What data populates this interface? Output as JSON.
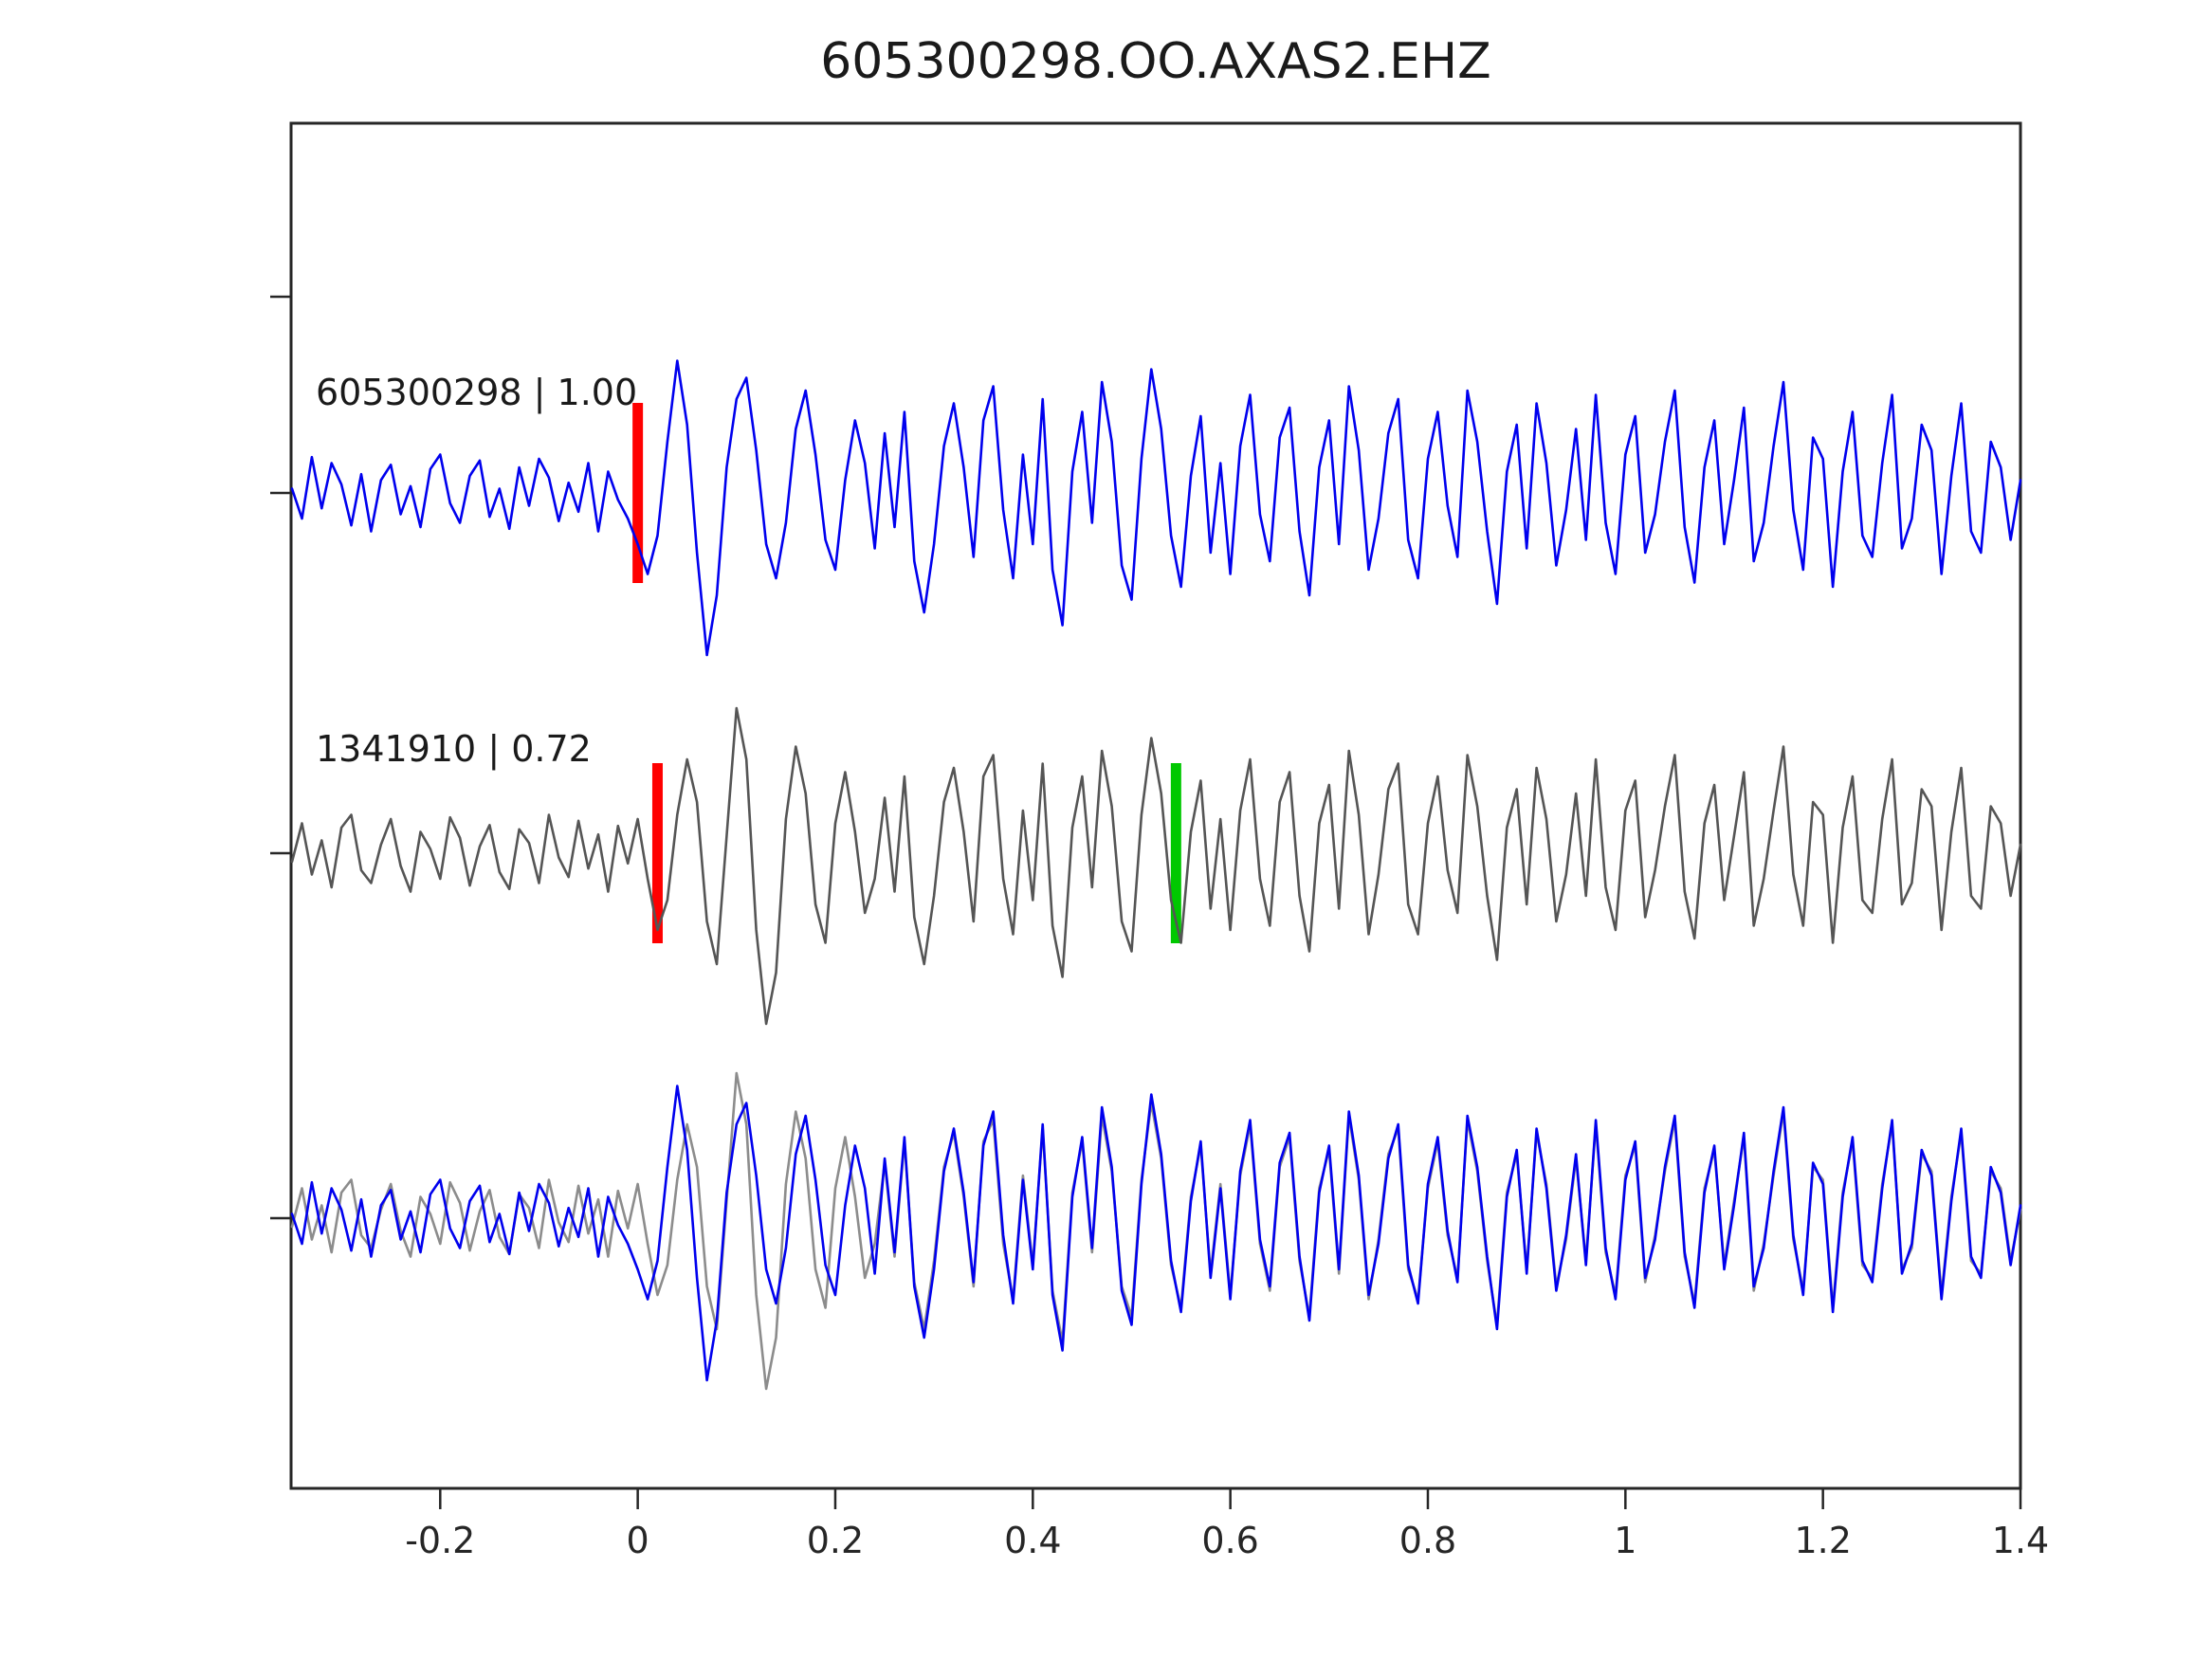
{
  "title": "605300298.OO.AXAS2.EHZ",
  "chart_data": {
    "type": "line",
    "title": "605300298.OO.AXAS2.EHZ",
    "xlabel": "",
    "ylabel": "",
    "xlim": [
      -0.351,
      1.4
    ],
    "grid": false,
    "legend": "none",
    "xticks": {
      "values": [
        -0.2,
        0,
        0.2,
        0.4,
        0.6,
        0.8,
        1,
        1.2,
        1.4
      ],
      "labels": [
        "-0.2",
        "0",
        "0.2",
        "0.4",
        "0.6",
        "0.8",
        "1",
        "1.2",
        "1.4"
      ]
    },
    "x_start": -0.35,
    "dx": 0.01,
    "rows": [
      {
        "name": "template-trace-row",
        "label": "605300298 | 1.00",
        "series": [
          {
            "ref": "template"
          }
        ],
        "picks": [
          {
            "x": 0.0,
            "color": "#ff0000",
            "name": "template-pick-red"
          }
        ]
      },
      {
        "name": "detection-trace-row",
        "label": "1341910 | 0.72",
        "series": [
          {
            "ref": "detection"
          }
        ],
        "picks": [
          {
            "x": 0.02,
            "color": "#ff0000",
            "name": "detection-pick-red"
          },
          {
            "x": 0.545,
            "color": "#00c800",
            "name": "detection-pick-green"
          }
        ]
      },
      {
        "name": "overlay-row",
        "label": "",
        "series": [
          {
            "ref": "detection",
            "color": "#8c8c8c"
          },
          {
            "ref": "template"
          }
        ],
        "picks": []
      }
    ],
    "series": {
      "template": {
        "name": "605300298",
        "color": "#0000ee",
        "values": [
          0.05,
          -0.3,
          0.42,
          -0.18,
          0.35,
          0.1,
          -0.38,
          0.22,
          -0.45,
          0.15,
          0.33,
          -0.25,
          0.08,
          -0.4,
          0.28,
          0.45,
          -0.12,
          -0.35,
          0.2,
          0.38,
          -0.28,
          0.05,
          -0.42,
          0.3,
          -0.15,
          0.4,
          0.18,
          -0.33,
          0.12,
          -0.22,
          0.35,
          -0.45,
          0.25,
          -0.08,
          -0.3,
          -0.6,
          -0.95,
          -0.5,
          0.6,
          1.55,
          0.8,
          -0.7,
          -1.9,
          -1.2,
          0.3,
          1.1,
          1.35,
          0.5,
          -0.6,
          -1.0,
          -0.35,
          0.75,
          1.2,
          0.45,
          -0.55,
          -0.9,
          0.15,
          0.85,
          0.35,
          -0.65,
          0.7,
          -0.4,
          0.95,
          -0.8,
          -1.4,
          -0.6,
          0.55,
          1.05,
          0.3,
          -0.75,
          0.85,
          1.25,
          -0.2,
          -1.0,
          0.45,
          -0.6,
          1.1,
          -0.9,
          -1.55,
          0.25,
          0.95,
          -0.35,
          1.3,
          0.6,
          -0.85,
          -1.25,
          0.4,
          1.45,
          0.75,
          -0.5,
          -1.1,
          0.2,
          0.9,
          -0.7,
          0.35,
          -0.95,
          0.55,
          1.15,
          -0.25,
          -0.8,
          0.65,
          1.0,
          -0.45,
          -1.2,
          0.3,
          0.85,
          -0.6,
          1.25,
          0.5,
          -0.9,
          -0.3,
          0.7,
          1.1,
          -0.55,
          -1.0,
          0.4,
          0.95,
          -0.15,
          -0.75,
          1.2,
          0.6,
          -0.45,
          -1.3,
          0.25,
          0.8,
          -0.65,
          1.05,
          0.35,
          -0.85,
          -0.2,
          0.75,
          -0.55,
          1.15,
          -0.35,
          -0.95,
          0.45,
          0.9,
          -0.7,
          -0.25,
          0.6,
          1.2,
          -0.4,
          -1.05,
          0.3,
          0.85,
          -0.6,
          0.15,
          1.0,
          -0.8,
          -0.35,
          0.55,
          1.3,
          -0.2,
          -0.9,
          0.65,
          0.4,
          -1.1,
          0.25,
          0.95,
          -0.5,
          -0.75,
          0.35,
          1.15,
          -0.65,
          -0.3,
          0.8,
          0.5,
          -0.95,
          0.2,
          1.05,
          -0.45,
          -0.7,
          0.6,
          0.3,
          -0.55,
          0.15
        ]
      },
      "detection": {
        "name": "1341910",
        "color": "#555555",
        "values": [
          -0.1,
          0.35,
          -0.25,
          0.15,
          -0.4,
          0.3,
          0.45,
          -0.2,
          -0.35,
          0.1,
          0.4,
          -0.15,
          -0.45,
          0.25,
          0.05,
          -0.3,
          0.42,
          0.18,
          -0.38,
          0.08,
          0.33,
          -0.22,
          -0.42,
          0.28,
          0.12,
          -0.35,
          0.45,
          -0.05,
          -0.28,
          0.38,
          -0.18,
          0.22,
          -0.45,
          0.32,
          -0.12,
          0.4,
          -0.3,
          -0.9,
          -0.55,
          0.45,
          1.1,
          0.6,
          -0.8,
          -1.3,
          0.2,
          1.7,
          1.1,
          -0.9,
          -2.0,
          -1.4,
          0.4,
          1.25,
          0.7,
          -0.6,
          -1.05,
          0.35,
          0.95,
          0.25,
          -0.7,
          -0.3,
          0.65,
          -0.45,
          0.9,
          -0.75,
          -1.3,
          -0.5,
          0.6,
          1.0,
          0.25,
          -0.8,
          0.9,
          1.15,
          -0.3,
          -0.95,
          0.5,
          -0.55,
          1.05,
          -0.85,
          -1.45,
          0.3,
          0.9,
          -0.4,
          1.2,
          0.55,
          -0.8,
          -1.15,
          0.45,
          1.35,
          0.7,
          -0.55,
          -1.05,
          0.25,
          0.85,
          -0.65,
          0.4,
          -0.9,
          0.5,
          1.1,
          -0.3,
          -0.85,
          0.6,
          0.95,
          -0.5,
          -1.15,
          0.35,
          0.8,
          -0.65,
          1.2,
          0.45,
          -0.95,
          -0.25,
          0.75,
          1.05,
          -0.6,
          -0.95,
          0.35,
          0.9,
          -0.2,
          -0.7,
          1.15,
          0.55,
          -0.5,
          -1.25,
          0.3,
          0.75,
          -0.6,
          1.0,
          0.4,
          -0.8,
          -0.25,
          0.7,
          -0.5,
          1.1,
          -0.4,
          -0.9,
          0.5,
          0.85,
          -0.75,
          -0.2,
          0.55,
          1.15,
          -0.45,
          -1.0,
          0.35,
          0.8,
          -0.55,
          0.2,
          0.95,
          -0.85,
          -0.3,
          0.5,
          1.25,
          -0.25,
          -0.85,
          0.6,
          0.45,
          -1.05,
          0.3,
          0.9,
          -0.55,
          -0.7,
          0.4,
          1.1,
          -0.6,
          -0.35,
          0.75,
          0.55,
          -0.9,
          0.25,
          1.0,
          -0.5,
          -0.65,
          0.55,
          0.35,
          -0.5,
          0.1
        ]
      }
    },
    "colors": {
      "template_blue": "#0000ee",
      "detection_gray": "#555555",
      "overlay_gray": "#8c8c8c",
      "pick_red": "#ff0000",
      "pick_green": "#00c800",
      "axis": "#262626"
    }
  }
}
